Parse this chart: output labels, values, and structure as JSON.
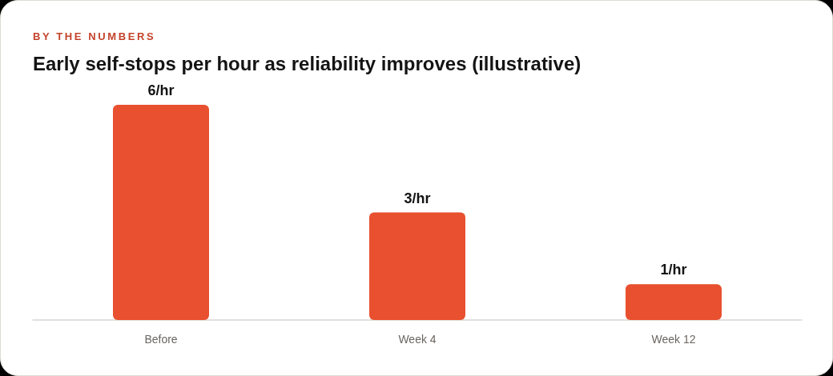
{
  "chart_data": {
    "type": "bar",
    "subtitle": "BY THE NUMBERS",
    "title": "Early self-stops per hour as reliability improves (illustrative)",
    "categories": [
      "Before",
      "Week 4",
      "Week 12"
    ],
    "values": [
      6,
      3,
      1
    ],
    "value_labels": [
      "6/hr",
      "3/hr",
      "1/hr"
    ],
    "color": "#e8502f"
  }
}
